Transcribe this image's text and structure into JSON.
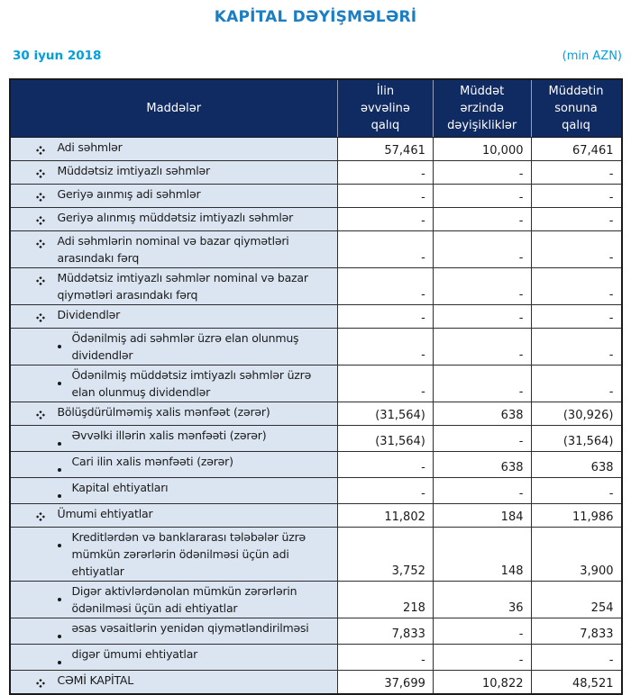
{
  "page": {
    "title": "KAPİTAL DƏYİŞMƏLƏRİ",
    "date": "30 iyun 2018",
    "unit": "(min AZN)"
  },
  "colors": {
    "title_blue": "#1b7ec2",
    "date_cyan": "#00a0dc",
    "header_bg": "#102a62",
    "label_bg": "#dbe5f1"
  },
  "table": {
    "headers": [
      "Maddələr",
      "İlin\nəvvəlinə\nqalıq",
      "Müddət\nərzində\ndəyişikliklər",
      "Müddətin\nsonuna\nqalıq"
    ],
    "rows": [
      {
        "label": "Adi səhmlər",
        "level": 1,
        "values": [
          "57,461",
          "10,000",
          "67,461"
        ]
      },
      {
        "label": "Müddətsiz imtiyazlı səhmlər",
        "level": 1,
        "values": [
          "-",
          "-",
          "-"
        ]
      },
      {
        "label": "Geriyə aınmış adi səhmlər",
        "level": 1,
        "values": [
          "-",
          "-",
          "-"
        ]
      },
      {
        "label": "Geriyə alınmış müddətsiz imtiyazlı səhmlər",
        "level": 1,
        "values": [
          "-",
          "-",
          "-"
        ]
      },
      {
        "label": "Adi səhmlərin nominal və bazar qiymətləri arasındakı fərq",
        "level": 1,
        "values": [
          "-",
          "-",
          "-"
        ]
      },
      {
        "label": "Müddətsiz imtiyazlı səhmlər nominal və bazar qiymətləri arasındakı fərq",
        "level": 1,
        "values": [
          "-",
          "-",
          "-"
        ]
      },
      {
        "label": "Dividendlər",
        "level": 1,
        "values": [
          "-",
          "-",
          "-"
        ]
      },
      {
        "label": "Ödənilmiş adi səhmlər üzrə elan olunmuş dividendlər",
        "level": 2,
        "values": [
          "-",
          "-",
          "-"
        ]
      },
      {
        "label": "Ödənilmiş müddətsiz imtiyazlı səhmlər üzrə elan olunmuş dividendlər",
        "level": 2,
        "values": [
          "-",
          "-",
          "-"
        ]
      },
      {
        "label": "Bölüşdürülməmiş xalis mənfəət (zərər)",
        "level": 1,
        "values": [
          "(31,564)",
          "638",
          "(30,926)"
        ]
      },
      {
        "label": "Əvvəlki illərin xalis mənfəəti (zərər)",
        "level": 2,
        "values": [
          "(31,564)",
          "-",
          "(31,564)"
        ]
      },
      {
        "label": "Cari ilin xalis mənfəəti (zərər)",
        "level": 2,
        "values": [
          "-",
          "638",
          "638"
        ]
      },
      {
        "label": "Kapital ehtiyatları",
        "level": 2,
        "values": [
          "-",
          "-",
          "-"
        ]
      },
      {
        "label": "Ümumi ehtiyatlar",
        "level": 1,
        "values": [
          "11,802",
          "184",
          "11,986"
        ]
      },
      {
        "label": "Kreditlərdən və banklararası tələbələr üzrə mümkün zərərlərin ödənilməsi üçün adi ehtiyatlar",
        "level": 2,
        "values": [
          "3,752",
          "148",
          "3,900"
        ]
      },
      {
        "label": "Digər aktivlərdənolan mümkün zərərlərin ödənilməsi üçün adi ehtiyatlar",
        "level": 2,
        "values": [
          "218",
          "36",
          "254"
        ]
      },
      {
        "label": "əsas vəsaitlərin yenidən qiymətləndirilməsi",
        "level": 2,
        "values": [
          "7,833",
          "-",
          "7,833"
        ]
      },
      {
        "label": "digər ümumi ehtiyatlar",
        "level": 2,
        "values": [
          "-",
          "-",
          "-"
        ]
      },
      {
        "label": "CƏMİ KAPİTAL",
        "level": 1,
        "values": [
          "37,699",
          "10,822",
          "48,521"
        ]
      }
    ]
  }
}
